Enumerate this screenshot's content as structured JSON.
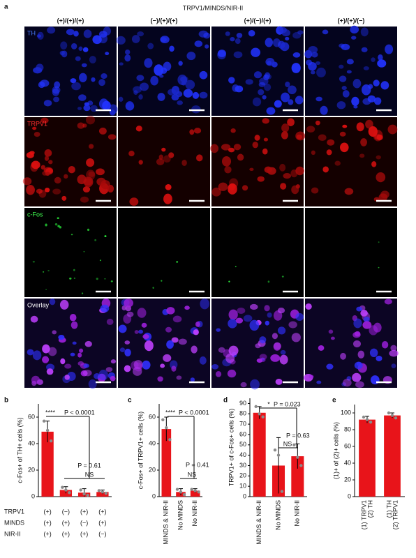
{
  "panel_a": {
    "letter": "a",
    "title": "TRPV1/MINDS/NIR-II",
    "column_headers": [
      "(+)/(+)/(+)",
      "(−)/(+)/(+)",
      "(+)/(−)/(+)",
      "(+)/(+)/(−)"
    ],
    "row_labels": [
      "TH",
      "TRPV1",
      "c-Fos",
      "Overlay"
    ]
  },
  "chart_data": [
    {
      "type": "bar",
      "letter": "b",
      "ylabel": "c-Fos+ of TH+ cells (%)",
      "color": "#e8141a",
      "categories": [
        null,
        null,
        null,
        null
      ],
      "values": [
        49,
        5,
        3,
        3.5
      ],
      "errors": [
        8,
        2.5,
        3,
        1.5
      ],
      "points": [
        [
          57,
          50,
          42
        ],
        [
          7,
          5,
          3
        ],
        [
          5,
          2,
          1
        ],
        [
          4.5,
          3.5,
          2.5
        ]
      ],
      "ylim": [
        0,
        70
      ],
      "yticks": [
        0,
        20,
        40,
        60
      ],
      "annotations": [
        "****",
        "P < 0.0001",
        "P = 0.61",
        "NS"
      ],
      "condition_table": {
        "rows": [
          "TRPV1",
          "MINDS",
          "NIR-II"
        ],
        "cells": [
          [
            "(+)",
            "(−)",
            "(+)",
            "(+)"
          ],
          [
            "(+)",
            "(+)",
            "(−)",
            "(+)"
          ],
          [
            "(+)",
            "(+)",
            "(+)",
            "(−)"
          ]
        ]
      }
    },
    {
      "type": "bar",
      "letter": "c",
      "ylabel": "c-Fos+ of TRPV1+ cells (%)",
      "color": "#e8141a",
      "categories": [
        "MINDS & NIR-II",
        "No MINDS",
        "No NIR-II"
      ],
      "values": [
        51,
        3.5,
        4.5
      ],
      "errors": [
        9,
        2.5,
        1.5
      ],
      "points": [
        [
          58,
          52,
          43
        ],
        [
          5.5,
          3.5,
          1.5
        ],
        [
          5.5,
          4.5,
          3.5
        ]
      ],
      "ylim": [
        0,
        70
      ],
      "yticks": [
        0,
        20,
        40,
        60
      ],
      "annotations": [
        "****",
        "P < 0.0001",
        "P = 0.41",
        "NS"
      ]
    },
    {
      "type": "bar",
      "letter": "d",
      "ylabel": "TRPV1+ of c-Fos+ cells (%)",
      "color": "#e8141a",
      "categories": [
        "MINDS & NIR-II",
        "No MINDS",
        "No NIR-II"
      ],
      "values": [
        81,
        30,
        39
      ],
      "errors": [
        6,
        27,
        12
      ],
      "points": [
        [
          87,
          80,
          77
        ],
        [
          45,
          40,
          5
        ],
        [
          50,
          38,
          30
        ]
      ],
      "ylim": [
        0,
        95
      ],
      "yticks": [
        0,
        10,
        20,
        30,
        40,
        50,
        60,
        70,
        80,
        90
      ],
      "annotations": [
        "*",
        "P = 0.023",
        "P = 0.63",
        "NS"
      ]
    },
    {
      "type": "bar",
      "letter": "e",
      "ylabel": "(1)+ of (2)+ cells (%)",
      "color": "#e8141a",
      "categories": [
        [
          "(1) TRPV1",
          "(2) TH"
        ],
        [
          "(1) TH",
          "(2) TRPV1"
        ]
      ],
      "values": [
        92,
        97
      ],
      "errors": [
        4,
        3
      ],
      "points": [
        [
          95,
          92,
          89
        ],
        [
          100,
          97,
          94
        ]
      ],
      "ylim": [
        0,
        110
      ],
      "yticks": [
        0,
        20,
        40,
        60,
        80,
        100
      ],
      "annotations": []
    }
  ]
}
